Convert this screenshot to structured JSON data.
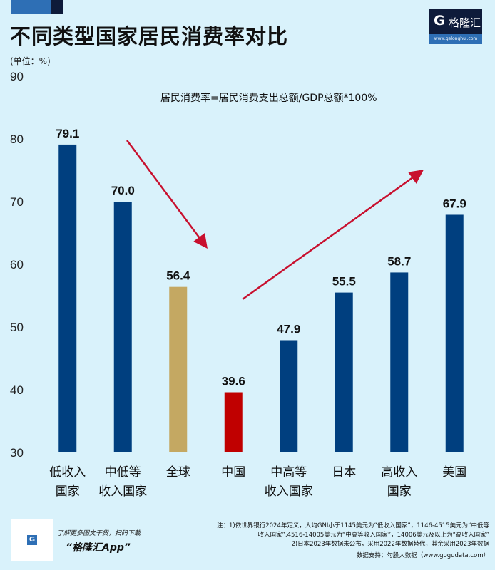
{
  "header": {
    "title": "不同类型国家居民消费率对比",
    "unit": "(单位：%)",
    "logo_name": "格隆汇",
    "logo_url": "www.gelonghui.com"
  },
  "formula": "居民消费率=居民消费支出总额/GDP总额*100%",
  "chart_data": {
    "type": "bar",
    "title": "不同类型国家居民消费率对比",
    "ylabel": "(单位：%)",
    "ylim": [
      30,
      90
    ],
    "yticks": [
      30,
      40,
      50,
      60,
      70,
      80,
      90
    ],
    "grid": false,
    "categories": [
      [
        "低收入",
        "国家"
      ],
      [
        "中低等",
        "收入国家"
      ],
      [
        "全球"
      ],
      [
        "中国"
      ],
      [
        "中高等",
        "收入国家"
      ],
      [
        "日本"
      ],
      [
        "高收入",
        "国家"
      ],
      [
        "美国"
      ]
    ],
    "values": [
      79.1,
      70.0,
      56.4,
      39.6,
      47.9,
      55.5,
      58.7,
      67.9
    ],
    "value_labels": [
      "79.1",
      "70.0",
      "56.4",
      "39.6",
      "47.9",
      "55.5",
      "58.7",
      "67.9"
    ],
    "colors": [
      "#003f7f",
      "#003f7f",
      "#c4a862",
      "#c00000",
      "#003f7f",
      "#003f7f",
      "#003f7f",
      "#003f7f"
    ],
    "annotations": [
      "downward red arrow from 低收入/中低等 toward 中国",
      "upward red arrow from 中国 toward 美国"
    ]
  },
  "arrow_color": "#c8102e",
  "footer": {
    "promo_line": "了解更多图文干货，扫码下载",
    "promo_app": "“格隆汇App”",
    "notes": [
      "注：1)依世界银行2024年定义，人均GNI小于1145美元为“低收入国家”，1146-4515美元为“中低等",
      "收入国家”,4516-14005美元为“中高等收入国家”，14006美元及以上为“高收入国家”",
      "2)日本2023年数据未公布，采用2022年数据替代，其余采用2023年数据",
      "数据支持：勾股大数据（www.gogudata.com）"
    ]
  }
}
